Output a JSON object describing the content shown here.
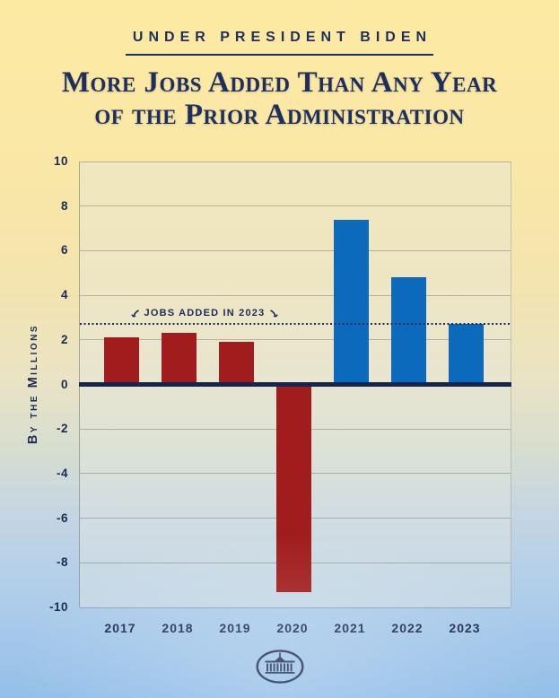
{
  "header": {
    "eyebrow": "UNDER PRESIDENT BIDEN",
    "title_lines": [
      "More Jobs Added Than Any Year",
      "of the Prior Administration"
    ]
  },
  "chart_data": {
    "type": "bar",
    "title": "More Jobs Added Than Any Year of the Prior Administration",
    "categories": [
      "2017",
      "2018",
      "2019",
      "2020",
      "2021",
      "2022",
      "2023"
    ],
    "values": [
      2.1,
      2.3,
      1.9,
      -9.3,
      7.4,
      4.8,
      2.7
    ],
    "bar_colors": [
      "#a11c1c",
      "#a11c1c",
      "#a11c1c",
      "#a11c1c",
      "#0c6abc",
      "#0c6abc",
      "#0c6abc"
    ],
    "ylabel": "By the Millions",
    "xlabel": "",
    "ylim": [
      -10,
      10
    ],
    "ytick_step": 2,
    "grid": true,
    "legend": "none",
    "reference_line": {
      "value": 2.7,
      "label": "JOBS ADDED IN 2023"
    }
  },
  "icons": {
    "logo": "white-house-logo",
    "annotation_arrows": [
      "curved-arrow-left-icon",
      "curved-arrow-right-icon"
    ]
  },
  "colors": {
    "navy": "#1c2b55",
    "red": "#a11c1c",
    "blue": "#0c6abc",
    "background_top": "#fdeaa2",
    "background_bottom": "#94bfe9"
  }
}
